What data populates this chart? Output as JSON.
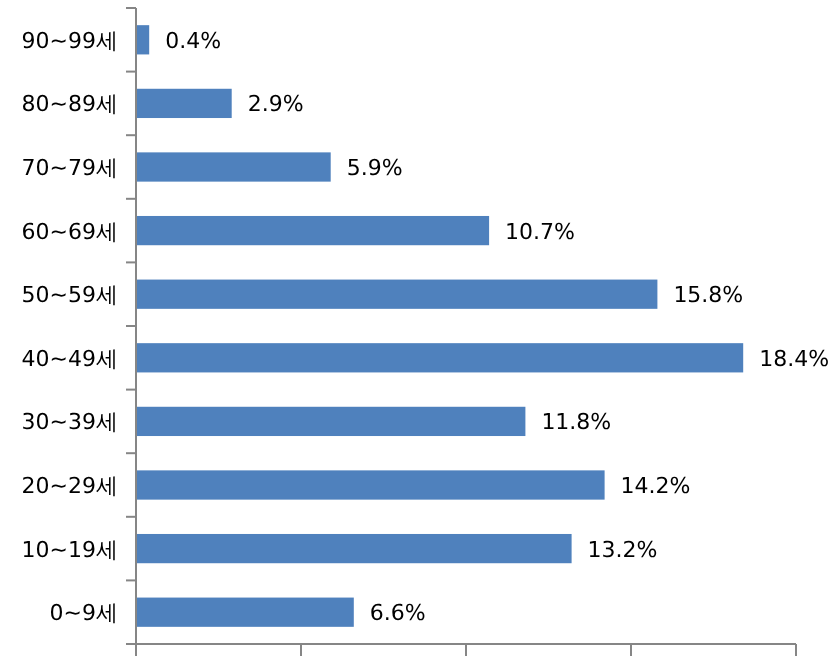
{
  "chart_data": {
    "type": "bar",
    "orientation": "horizontal",
    "categories": [
      "90~99세",
      "80~89세",
      "70~79세",
      "60~69세",
      "50~59세",
      "40~49세",
      "30~39세",
      "20~29세",
      "10~19세",
      "0~9세"
    ],
    "values": [
      0.4,
      2.9,
      5.9,
      10.7,
      15.8,
      18.4,
      11.8,
      14.2,
      13.2,
      6.6
    ],
    "value_labels": [
      "0.4%",
      "2.9%",
      "5.9%",
      "10.7%",
      "15.8%",
      "18.4%",
      "11.8%",
      "14.2%",
      "13.2%",
      "6.6%"
    ],
    "color": "#4f81bd",
    "xlim": [
      0,
      20
    ],
    "xticks": [
      {
        "value": 0,
        "label": null
      },
      {
        "value": 5,
        "label": null
      },
      {
        "value": 10,
        "label": null
      },
      {
        "value": 15,
        "label": null
      },
      {
        "value": 20,
        "label": null
      }
    ],
    "tick_labels": "y"
  }
}
